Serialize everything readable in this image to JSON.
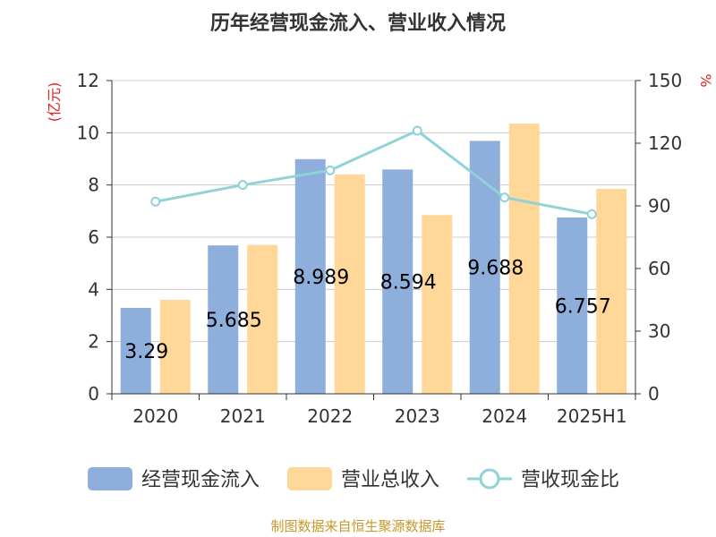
{
  "chart_data": {
    "type": "bar",
    "title": "历年经营现金流入、营业收入情况",
    "categories": [
      "2020",
      "2021",
      "2022",
      "2023",
      "2024",
      "2025H1"
    ],
    "series": [
      {
        "name": "经营现金流入",
        "axis": "left",
        "type": "bar",
        "values": [
          3.29,
          5.685,
          8.989,
          8.594,
          9.688,
          6.757
        ],
        "data_labels": [
          "3.29",
          "5.685",
          "8.989",
          "8.594",
          "9.688",
          "6.757"
        ],
        "color": "#8eaedb"
      },
      {
        "name": "营业总收入",
        "axis": "left",
        "type": "bar",
        "values": [
          3.6,
          5.7,
          8.4,
          6.85,
          10.35,
          7.85
        ],
        "color": "#ffd899"
      },
      {
        "name": "营收现金比",
        "axis": "right",
        "type": "line",
        "values": [
          92,
          100,
          107,
          126,
          94,
          86
        ],
        "color": "#8fd3d8"
      }
    ],
    "y_left": {
      "unit": "(亿元)",
      "min": 0,
      "max": 12,
      "ticks": [
        "0",
        "2",
        "4",
        "6",
        "8",
        "10",
        "12"
      ]
    },
    "y_right": {
      "unit": "%",
      "min": 0,
      "max": 150,
      "ticks": [
        "0",
        "30",
        "60",
        "90",
        "120",
        "150"
      ]
    },
    "grid": true,
    "legend_position": "bottom",
    "source": "制图数据来自恒生聚源数据库"
  }
}
